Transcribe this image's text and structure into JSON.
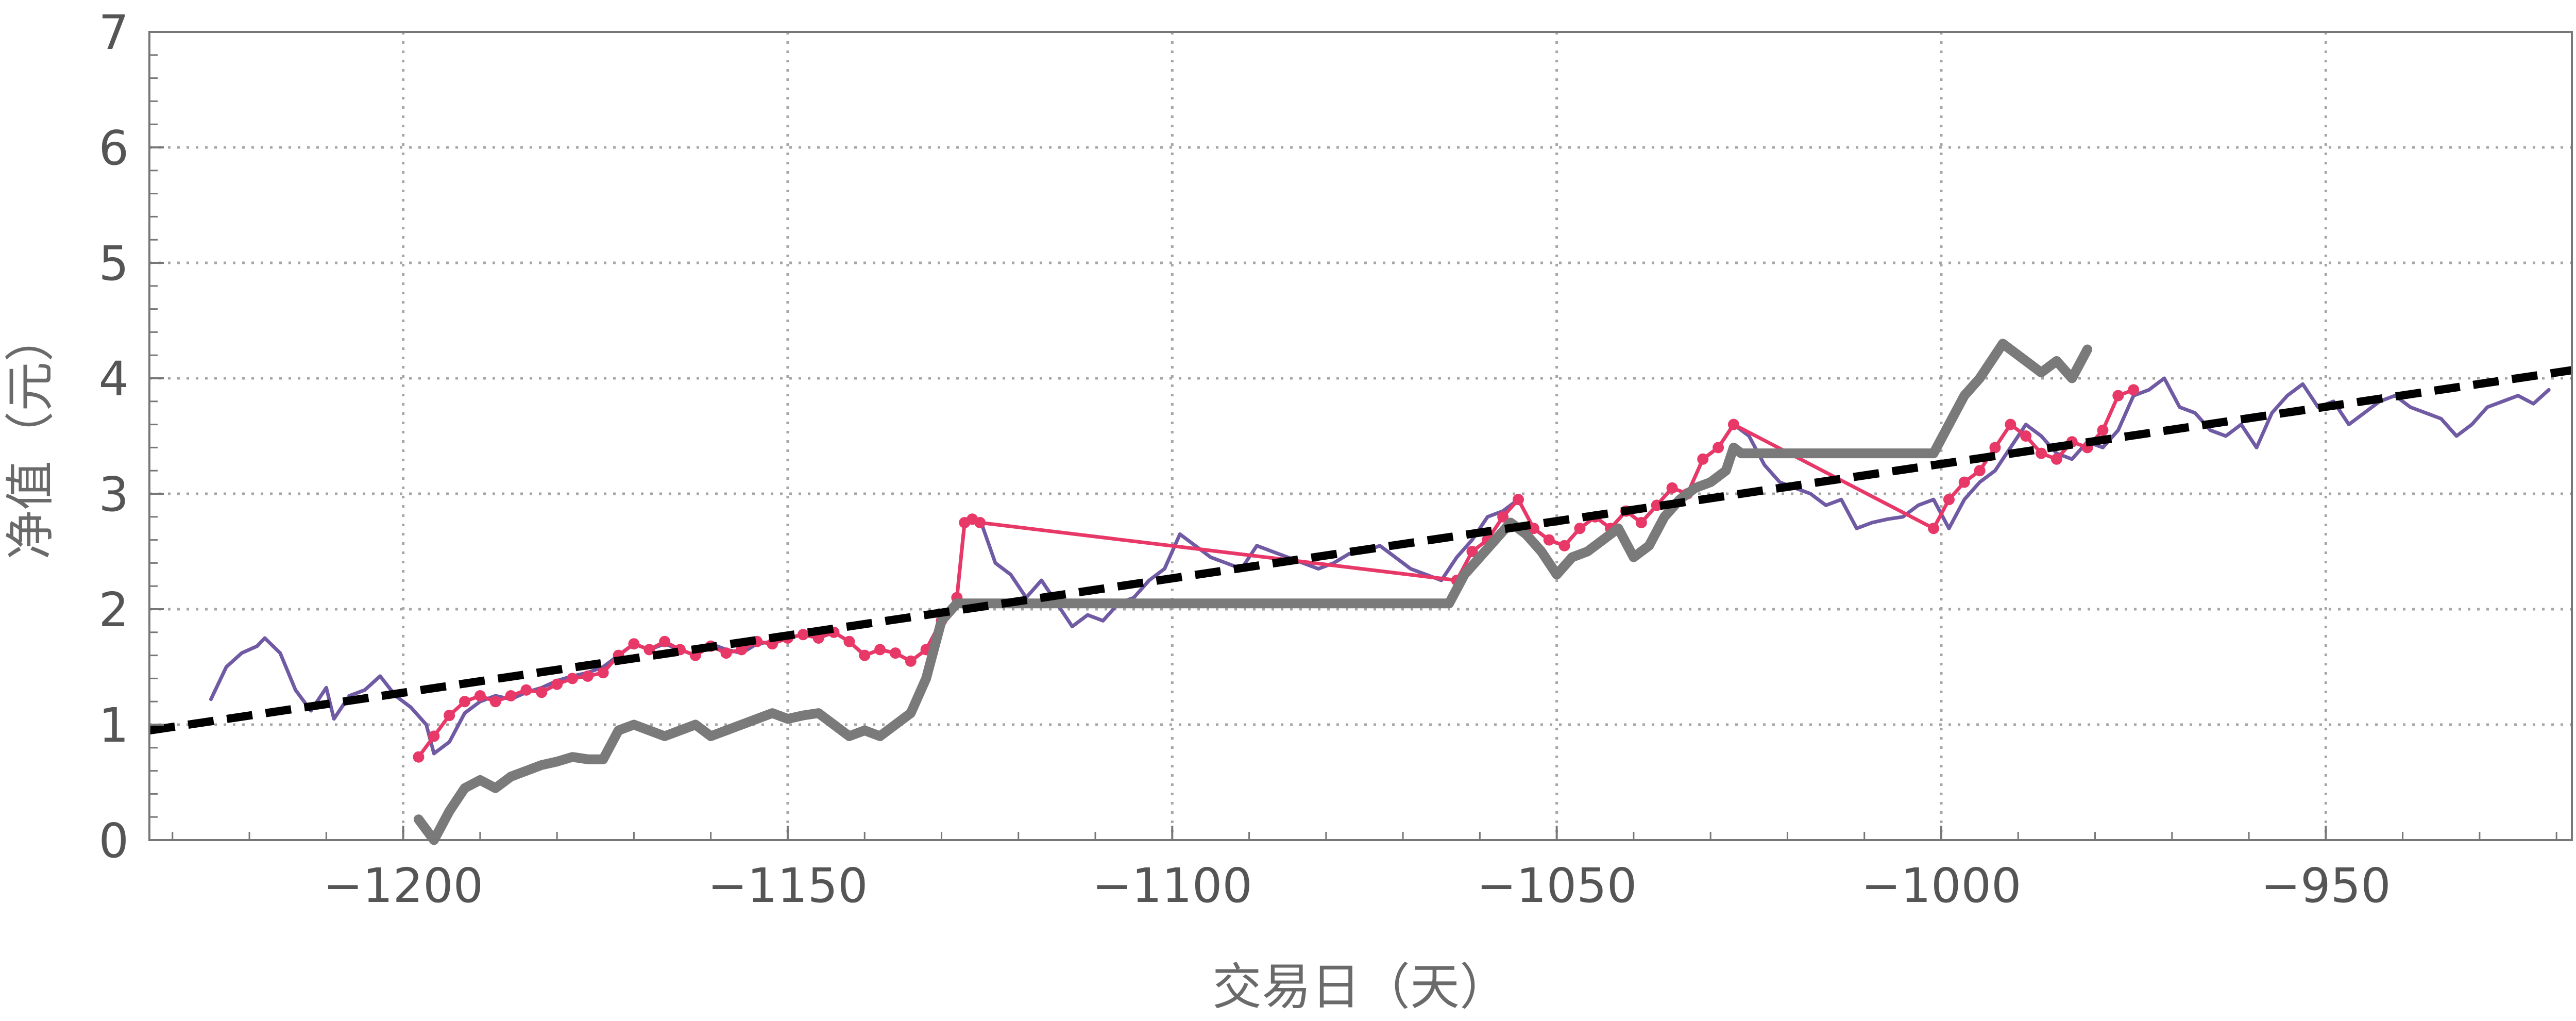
{
  "chart_data": {
    "type": "line",
    "xlabel": "交易日（天）",
    "ylabel": "净值（元）",
    "xlim": [
      -1233,
      -918
    ],
    "ylim": [
      0,
      7
    ],
    "xticks": [
      -1200,
      -1150,
      -1100,
      -1050,
      -1000,
      -950
    ],
    "xtick_labels": [
      "−1200",
      "−1150",
      "−1100",
      "−1050",
      "−1000",
      "−950"
    ],
    "yticks": [
      0,
      1,
      2,
      3,
      4,
      5,
      6,
      7
    ],
    "ytick_labels": [
      "0",
      "1",
      "2",
      "3",
      "4",
      "5",
      "6",
      "7"
    ],
    "grid": true,
    "legend": "none",
    "series": [
      {
        "color": "#6f5aa3",
        "style": "thin-line",
        "x": [
          -1225,
          -1223,
          -1221,
          -1219,
          -1218,
          -1216,
          -1214,
          -1212,
          -1210,
          -1209,
          -1207,
          -1205,
          -1203,
          -1201,
          -1199,
          -1197,
          -1196,
          -1194,
          -1192,
          -1190,
          -1188,
          -1186,
          -1184,
          -1182,
          -1180,
          -1178,
          -1176,
          -1174,
          -1172,
          -1170,
          -1168,
          -1166,
          -1164,
          -1162,
          -1160,
          -1158,
          -1156,
          -1154,
          -1152,
          -1150,
          -1148,
          -1146,
          -1144,
          -1142,
          -1140,
          -1138,
          -1136,
          -1134,
          -1132,
          -1130,
          -1128,
          -1127,
          -1125,
          -1123,
          -1121,
          -1119,
          -1117,
          -1115,
          -1113,
          -1111,
          -1109,
          -1107,
          -1105,
          -1103,
          -1101,
          -1099,
          -1097,
          -1095,
          -1093,
          -1091,
          -1089,
          -1087,
          -1085,
          -1083,
          -1081,
          -1079,
          -1077,
          -1075,
          -1073,
          -1071,
          -1069,
          -1067,
          -1065,
          -1063,
          -1061,
          -1059,
          -1057,
          -1055,
          -1053,
          -1051,
          -1049,
          -1047,
          -1045,
          -1043,
          -1041,
          -1039,
          -1037,
          -1035,
          -1033,
          -1031,
          -1029,
          -1027,
          -1025,
          -1023,
          -1021,
          -1019,
          -1017,
          -1015,
          -1013,
          -1011,
          -1009,
          -1007,
          -1005,
          -1003,
          -1001,
          -999,
          -997,
          -995,
          -993,
          -991,
          -989,
          -987,
          -985,
          -983,
          -981,
          -979,
          -977,
          -975,
          -973,
          -971,
          -969,
          -967,
          -965,
          -963,
          -961,
          -959,
          -957,
          -955,
          -953,
          -951,
          -949,
          -947,
          -945,
          -943,
          -941,
          -939,
          -937,
          -935,
          -933,
          -931,
          -929,
          -927,
          -925,
          -923,
          -921
        ],
        "y": [
          1.22,
          1.5,
          1.62,
          1.68,
          1.75,
          1.62,
          1.3,
          1.12,
          1.32,
          1.05,
          1.25,
          1.3,
          1.42,
          1.25,
          1.15,
          1.0,
          0.75,
          0.85,
          1.1,
          1.2,
          1.25,
          1.22,
          1.28,
          1.32,
          1.38,
          1.42,
          1.45,
          1.5,
          1.6,
          1.7,
          1.65,
          1.7,
          1.65,
          1.6,
          1.7,
          1.65,
          1.62,
          1.7,
          1.72,
          1.75,
          1.78,
          1.75,
          1.8,
          1.72,
          1.6,
          1.65,
          1.62,
          1.55,
          1.65,
          1.9,
          2.1,
          2.75,
          2.78,
          2.4,
          2.3,
          2.1,
          2.25,
          2.05,
          1.85,
          1.95,
          1.9,
          2.05,
          2.1,
          2.25,
          2.35,
          2.65,
          2.55,
          2.45,
          2.4,
          2.35,
          2.55,
          2.5,
          2.45,
          2.4,
          2.35,
          2.4,
          2.48,
          2.5,
          2.55,
          2.45,
          2.35,
          2.3,
          2.25,
          2.45,
          2.6,
          2.8,
          2.85,
          2.95,
          2.7,
          2.6,
          2.55,
          2.7,
          2.8,
          2.7,
          2.85,
          2.75,
          2.9,
          3.05,
          3.0,
          3.3,
          3.4,
          3.6,
          3.5,
          3.25,
          3.1,
          3.05,
          3.0,
          2.9,
          2.95,
          2.7,
          2.75,
          2.78,
          2.8,
          2.9,
          2.95,
          2.7,
          2.95,
          3.1,
          3.2,
          3.4,
          3.6,
          3.5,
          3.35,
          3.3,
          3.45,
          3.4,
          3.55,
          3.85,
          3.9,
          4.0,
          3.75,
          3.7,
          3.55,
          3.5,
          3.6,
          3.4,
          3.7,
          3.85,
          3.95,
          3.75,
          3.8,
          3.6,
          3.7,
          3.8,
          3.85,
          3.75,
          3.7,
          3.65,
          3.5,
          3.6,
          3.75,
          3.8,
          3.85,
          3.78,
          3.9
        ]
      },
      {
        "color": "#e83868",
        "style": "dotted-line",
        "x": [
          -1198,
          -1196,
          -1194,
          -1192,
          -1190,
          -1188,
          -1186,
          -1184,
          -1182,
          -1180,
          -1178,
          -1176,
          -1174,
          -1172,
          -1170,
          -1168,
          -1166,
          -1164,
          -1162,
          -1160,
          -1158,
          -1156,
          -1154,
          -1152,
          -1150,
          -1148,
          -1146,
          -1144,
          -1142,
          -1140,
          -1138,
          -1136,
          -1134,
          -1132,
          -1130,
          -1128,
          -1127,
          -1126,
          -1125,
          -1063,
          -1061,
          -1059,
          -1057,
          -1055,
          -1053,
          -1051,
          -1049,
          -1047,
          -1045,
          -1043,
          -1041,
          -1039,
          -1037,
          -1035,
          -1033,
          -1031,
          -1029,
          -1027,
          -1001,
          -999,
          -997,
          -995,
          -993,
          -991,
          -989,
          -987,
          -985,
          -983,
          -981,
          -979,
          -977,
          -975
        ],
        "y": [
          0.72,
          0.9,
          1.08,
          1.2,
          1.25,
          1.2,
          1.25,
          1.3,
          1.28,
          1.35,
          1.4,
          1.42,
          1.45,
          1.6,
          1.7,
          1.65,
          1.72,
          1.65,
          1.6,
          1.68,
          1.62,
          1.65,
          1.72,
          1.7,
          1.75,
          1.78,
          1.75,
          1.8,
          1.72,
          1.6,
          1.65,
          1.62,
          1.55,
          1.65,
          1.9,
          2.1,
          2.75,
          2.78,
          2.75,
          2.25,
          2.5,
          2.6,
          2.8,
          2.95,
          2.7,
          2.6,
          2.55,
          2.7,
          2.8,
          2.7,
          2.85,
          2.75,
          2.9,
          3.05,
          3.0,
          3.3,
          3.4,
          3.6,
          2.7,
          2.95,
          3.1,
          3.2,
          3.4,
          3.6,
          3.5,
          3.35,
          3.3,
          3.45,
          3.4,
          3.55,
          3.85,
          3.9
        ]
      },
      {
        "color": "#7a7a7a",
        "style": "thick-line",
        "x": [
          -1198,
          -1196,
          -1194,
          -1192,
          -1190,
          -1188,
          -1186,
          -1184,
          -1182,
          -1180,
          -1178,
          -1176,
          -1174,
          -1172,
          -1170,
          -1168,
          -1166,
          -1164,
          -1162,
          -1160,
          -1158,
          -1156,
          -1154,
          -1152,
          -1150,
          -1148,
          -1146,
          -1144,
          -1142,
          -1140,
          -1138,
          -1136,
          -1134,
          -1132,
          -1130,
          -1128,
          -1127,
          -1126,
          -1100,
          -1064,
          -1062,
          -1060,
          -1058,
          -1056,
          -1054,
          -1052,
          -1050,
          -1048,
          -1046,
          -1044,
          -1042,
          -1040,
          -1038,
          -1036,
          -1034,
          -1032,
          -1030,
          -1028,
          -1027,
          -1026,
          -1001,
          -999,
          -997,
          -995,
          -993,
          -992,
          -991,
          -989,
          -987,
          -985,
          -983,
          -981
        ],
        "y": [
          0.18,
          0.0,
          0.25,
          0.45,
          0.52,
          0.45,
          0.55,
          0.6,
          0.65,
          0.68,
          0.72,
          0.7,
          0.7,
          0.95,
          1.0,
          0.95,
          0.9,
          0.95,
          1.0,
          0.9,
          0.95,
          1.0,
          1.05,
          1.1,
          1.05,
          1.08,
          1.1,
          1.0,
          0.9,
          0.95,
          0.9,
          1.0,
          1.1,
          1.4,
          1.9,
          2.05,
          2.05,
          2.05,
          2.05,
          2.05,
          2.3,
          2.45,
          2.6,
          2.75,
          2.65,
          2.5,
          2.3,
          2.45,
          2.5,
          2.6,
          2.7,
          2.45,
          2.55,
          2.8,
          2.95,
          3.05,
          3.1,
          3.2,
          3.4,
          3.35,
          3.35,
          3.6,
          3.85,
          4.0,
          4.2,
          4.3,
          4.25,
          4.15,
          4.05,
          4.15,
          4.0,
          4.25
        ]
      },
      {
        "color": "#000000",
        "style": "dashed-line",
        "x": [
          -1233,
          -918
        ],
        "y": [
          0.95,
          4.07
        ]
      }
    ]
  }
}
